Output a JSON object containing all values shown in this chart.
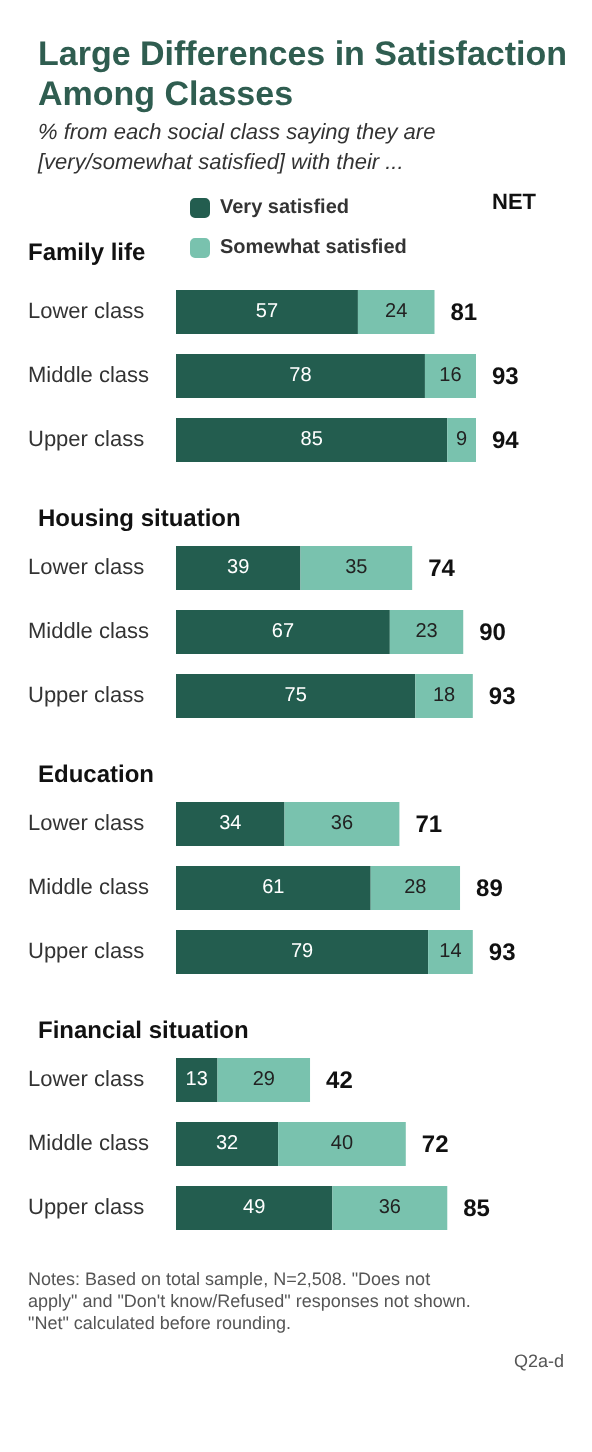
{
  "chart_data": [
    {
      "type": "bar",
      "orientation": "horizontal",
      "stacked": true,
      "data_labels": true,
      "legend": "top",
      "title": "Large Differences in Satisfaction Among Classes",
      "subtitle": "% from each social class saying they are [very/somewhat satisfied] with their ...",
      "annotations": [
        "NET",
        "Family life"
      ],
      "categories": [
        "Lower class",
        "Middle class",
        "Upper class"
      ],
      "series": [
        {
          "name": "Very satisfied",
          "color": "#235d4f",
          "values": [
            57,
            78,
            85
          ]
        },
        {
          "name": "Somewhat satisfied",
          "color": "#79c2ae",
          "values": [
            24,
            16,
            9
          ]
        }
      ],
      "totals": [
        "81",
        "93",
        "94"
      ]
    },
    {
      "type": "bar",
      "orientation": "horizontal",
      "stacked": true,
      "data_labels": true,
      "title": "Housing situation",
      "categories": [
        "Lower class",
        "Middle class",
        "Upper class"
      ],
      "series": [
        {
          "color": "#235d4f",
          "values": [
            39,
            67,
            75
          ]
        },
        {
          "color": "#79c2ae",
          "values": [
            35,
            23,
            18
          ]
        }
      ],
      "totals": [
        "74",
        "90",
        "93"
      ]
    },
    {
      "type": "bar",
      "orientation": "horizontal",
      "stacked": true,
      "data_labels": true,
      "title": "Education",
      "categories": [
        "Lower class",
        "Middle class",
        "Upper class"
      ],
      "series": [
        {
          "color": "#235d4f",
          "values": [
            34,
            61,
            79
          ]
        },
        {
          "color": "#79c2ae",
          "values": [
            36,
            28,
            14
          ]
        }
      ],
      "totals": [
        "71",
        "89",
        "93"
      ]
    },
    {
      "type": "bar",
      "orientation": "horizontal",
      "stacked": true,
      "data_labels": true,
      "title": "Financial situation",
      "categories": [
        "Lower class",
        "Middle class",
        "Upper class"
      ],
      "annotations": [
        "Notes: Based on total sample, N=2,508. \"Does not apply\" and \"Don't know/Refused\" responses not shown. \"Net\" calculated before rounding.",
        "Q2a-d"
      ],
      "series": [
        {
          "color": "#235d4f",
          "values": [
            13,
            32,
            49
          ]
        },
        {
          "color": "#79c2ae",
          "values": [
            29,
            40,
            36
          ]
        }
      ],
      "totals": [
        "42",
        "72",
        "85"
      ]
    }
  ]
}
